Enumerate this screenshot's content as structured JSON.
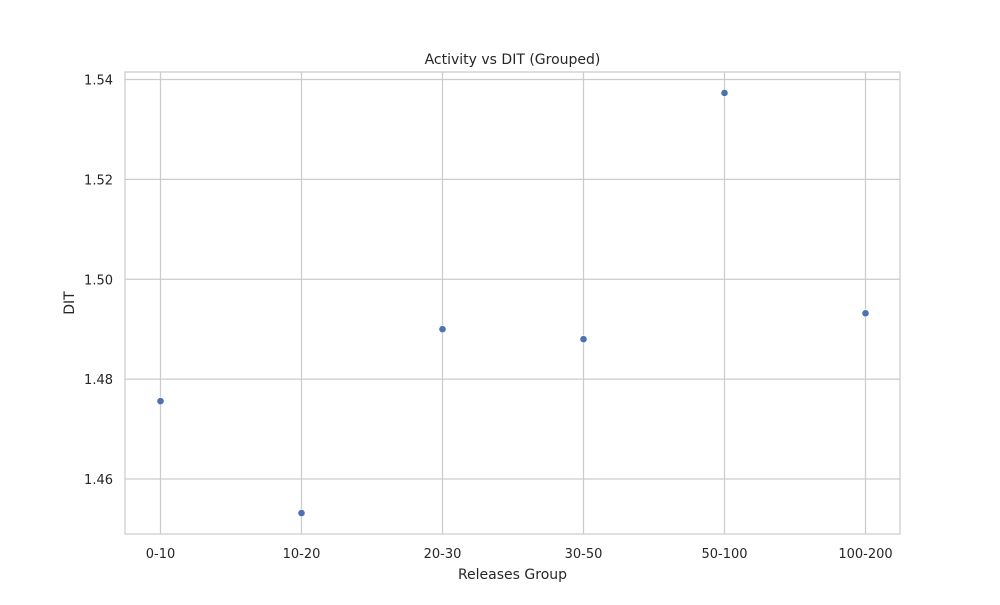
{
  "chart_data": {
    "type": "scatter",
    "title": "Activity vs DIT (Grouped)",
    "xlabel": "Releases Group",
    "ylabel": "DIT",
    "categories": [
      "0-10",
      "10-20",
      "20-30",
      "30-50",
      "50-100",
      "100-200"
    ],
    "values": [
      1.4756,
      1.4532,
      1.49,
      1.488,
      1.5373,
      1.4932
    ],
    "ylim": [
      1.449,
      1.5415
    ],
    "yticks": [
      1.46,
      1.48,
      1.5,
      1.52,
      1.54
    ],
    "ytick_labels": [
      "1.46",
      "1.48",
      "1.50",
      "1.52",
      "1.54"
    ],
    "grid": true,
    "colors": {
      "point": "#4c72b0",
      "grid": "#cccccc",
      "frame": "#cccccc"
    }
  }
}
